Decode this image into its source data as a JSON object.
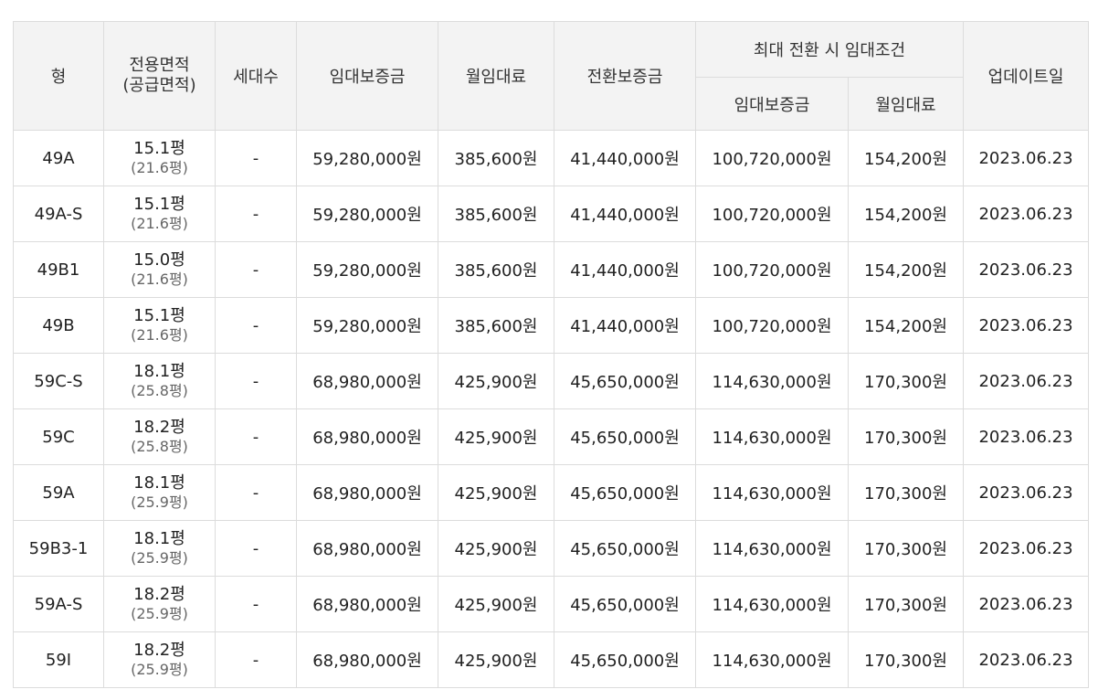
{
  "headers": {
    "type": "형",
    "area_line1": "전용면적",
    "area_line2": "(공급면적)",
    "households": "세대수",
    "deposit": "임대보증금",
    "monthly_rent": "월임대료",
    "conversion_deposit": "전환보증금",
    "max_conversion": "최대 전환 시 임대조건",
    "max_deposit": "임대보증금",
    "max_rent": "월임대료",
    "updated": "업데이트일"
  },
  "rows": [
    {
      "type": "49A",
      "area": "15.1평",
      "supply": "(21.6평)",
      "households": "-",
      "deposit": "59,280,000원",
      "rent": "385,600원",
      "conversion": "41,440,000원",
      "max_deposit": "100,720,000원",
      "max_rent": "154,200원",
      "updated": "2023.06.23"
    },
    {
      "type": "49A-S",
      "area": "15.1평",
      "supply": "(21.6평)",
      "households": "-",
      "deposit": "59,280,000원",
      "rent": "385,600원",
      "conversion": "41,440,000원",
      "max_deposit": "100,720,000원",
      "max_rent": "154,200원",
      "updated": "2023.06.23"
    },
    {
      "type": "49B1",
      "area": "15.0평",
      "supply": "(21.6평)",
      "households": "-",
      "deposit": "59,280,000원",
      "rent": "385,600원",
      "conversion": "41,440,000원",
      "max_deposit": "100,720,000원",
      "max_rent": "154,200원",
      "updated": "2023.06.23"
    },
    {
      "type": "49B",
      "area": "15.1평",
      "supply": "(21.6평)",
      "households": "-",
      "deposit": "59,280,000원",
      "rent": "385,600원",
      "conversion": "41,440,000원",
      "max_deposit": "100,720,000원",
      "max_rent": "154,200원",
      "updated": "2023.06.23"
    },
    {
      "type": "59C-S",
      "area": "18.1평",
      "supply": "(25.8평)",
      "households": "-",
      "deposit": "68,980,000원",
      "rent": "425,900원",
      "conversion": "45,650,000원",
      "max_deposit": "114,630,000원",
      "max_rent": "170,300원",
      "updated": "2023.06.23"
    },
    {
      "type": "59C",
      "area": "18.2평",
      "supply": "(25.8평)",
      "households": "-",
      "deposit": "68,980,000원",
      "rent": "425,900원",
      "conversion": "45,650,000원",
      "max_deposit": "114,630,000원",
      "max_rent": "170,300원",
      "updated": "2023.06.23"
    },
    {
      "type": "59A",
      "area": "18.1평",
      "supply": "(25.9평)",
      "households": "-",
      "deposit": "68,980,000원",
      "rent": "425,900원",
      "conversion": "45,650,000원",
      "max_deposit": "114,630,000원",
      "max_rent": "170,300원",
      "updated": "2023.06.23"
    },
    {
      "type": "59B3-1",
      "area": "18.1평",
      "supply": "(25.9평)",
      "households": "-",
      "deposit": "68,980,000원",
      "rent": "425,900원",
      "conversion": "45,650,000원",
      "max_deposit": "114,630,000원",
      "max_rent": "170,300원",
      "updated": "2023.06.23"
    },
    {
      "type": "59A-S",
      "area": "18.2평",
      "supply": "(25.9평)",
      "households": "-",
      "deposit": "68,980,000원",
      "rent": "425,900원",
      "conversion": "45,650,000원",
      "max_deposit": "114,630,000원",
      "max_rent": "170,300원",
      "updated": "2023.06.23"
    },
    {
      "type": "59I",
      "area": "18.2평",
      "supply": "(25.9평)",
      "households": "-",
      "deposit": "68,980,000원",
      "rent": "425,900원",
      "conversion": "45,650,000원",
      "max_deposit": "114,630,000원",
      "max_rent": "170,300원",
      "updated": "2023.06.23"
    }
  ]
}
